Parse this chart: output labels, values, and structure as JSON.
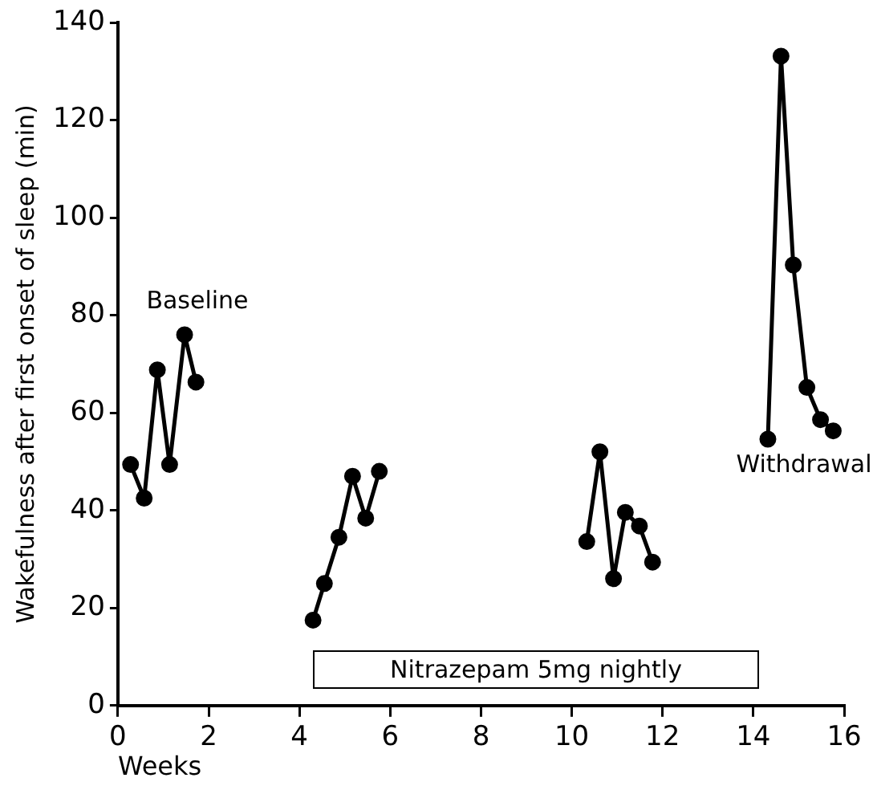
{
  "chart_data": {
    "type": "line",
    "xlabel": "Weeks",
    "ylabel": "Wakefulness after first onset of sleep (min)",
    "xlim": [
      0,
      16
    ],
    "xticks": [
      0,
      2,
      4,
      6,
      8,
      10,
      12,
      14,
      16
    ],
    "ylim": [
      0,
      140
    ],
    "yticks": [
      0,
      20,
      40,
      60,
      80,
      100,
      120,
      140
    ],
    "grid": false,
    "legend": false,
    "marker": "circle",
    "line_style": "solid",
    "series": [
      {
        "color": "#000000",
        "x": [
          0.28,
          0.58,
          0.87,
          1.14,
          1.47,
          1.72
        ],
        "values": [
          49.4,
          42.5,
          68.8,
          49.4,
          76,
          66.3
        ]
      },
      {
        "color": "#000000",
        "x": [
          4.3,
          4.55,
          4.87,
          5.17,
          5.46,
          5.76
        ],
        "values": [
          17.5,
          25,
          34.5,
          47,
          38.4,
          48
        ]
      },
      {
        "color": "#000000",
        "x": [
          10.33,
          10.62,
          10.92,
          11.18,
          11.49,
          11.78
        ],
        "values": [
          33.6,
          52,
          26,
          39.6,
          36.8,
          29.4
        ]
      },
      {
        "color": "#000000",
        "x": [
          14.32,
          14.61,
          14.88,
          15.18,
          15.48,
          15.76
        ],
        "values": [
          54.6,
          133.1,
          90.3,
          65.2,
          58.6,
          56.3
        ]
      }
    ],
    "annotations": [
      "Baseline",
      "Withdrawal",
      "Nitrazepam 5mg nightly"
    ]
  }
}
